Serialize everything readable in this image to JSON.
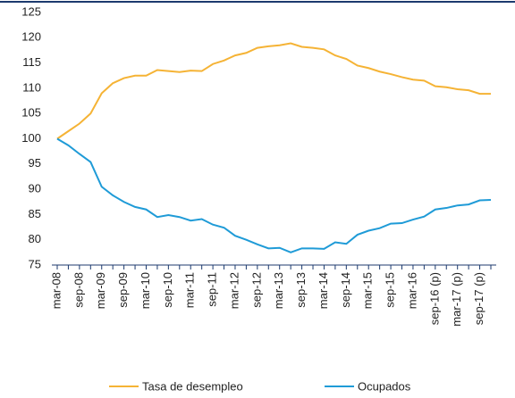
{
  "chart_data": {
    "type": "line",
    "categories": [
      "mar-08",
      null,
      "sep-08",
      null,
      "mar-09",
      null,
      "sep-09",
      null,
      "mar-10",
      null,
      "sep-10",
      null,
      "mar-11",
      null,
      "sep-11",
      null,
      "mar-12",
      null,
      "sep-12",
      null,
      "mar-13",
      null,
      "sep-13",
      null,
      "mar-14",
      null,
      "sep-14",
      null,
      "mar-15",
      null,
      "sep-15",
      null,
      "mar-16",
      null,
      "sep-16 (p)",
      null,
      "mar-17 (p)",
      null,
      "sep-17 (p)",
      null
    ],
    "series": [
      {
        "name": "Tasa de desempleo",
        "color": "#f5b335",
        "values": [
          100,
          101.5,
          103,
          105,
          109,
          111,
          112,
          112.5,
          112.5,
          113.6,
          113.4,
          113.2,
          113.5,
          113.4,
          114.8,
          115.5,
          116.5,
          117,
          118,
          118.3,
          118.5,
          118.9,
          118.2,
          118,
          117.7,
          116.5,
          115.8,
          114.5,
          114,
          113.3,
          112.8,
          112.2,
          111.7,
          111.5,
          110.4,
          110.2,
          109.8,
          109.6,
          108.9,
          108.9
        ]
      },
      {
        "name": "Ocupados",
        "color": "#1f9bd7",
        "values": [
          100,
          98.7,
          97,
          95.4,
          90.5,
          88.8,
          87.5,
          86.5,
          86,
          84.5,
          84.9,
          84.5,
          83.8,
          84.1,
          83,
          82.4,
          80.8,
          80,
          79.1,
          78.3,
          78.4,
          77.5,
          78.3,
          78.3,
          78.2,
          79.5,
          79.2,
          81,
          81.8,
          82.3,
          83.2,
          83.3,
          84,
          84.6,
          86,
          86.3,
          86.8,
          87,
          87.8,
          87.9
        ]
      }
    ],
    "ylim": [
      75,
      125
    ],
    "yticks": [
      75,
      80,
      85,
      90,
      95,
      100,
      105,
      110,
      115,
      120,
      125
    ],
    "grid": false
  }
}
